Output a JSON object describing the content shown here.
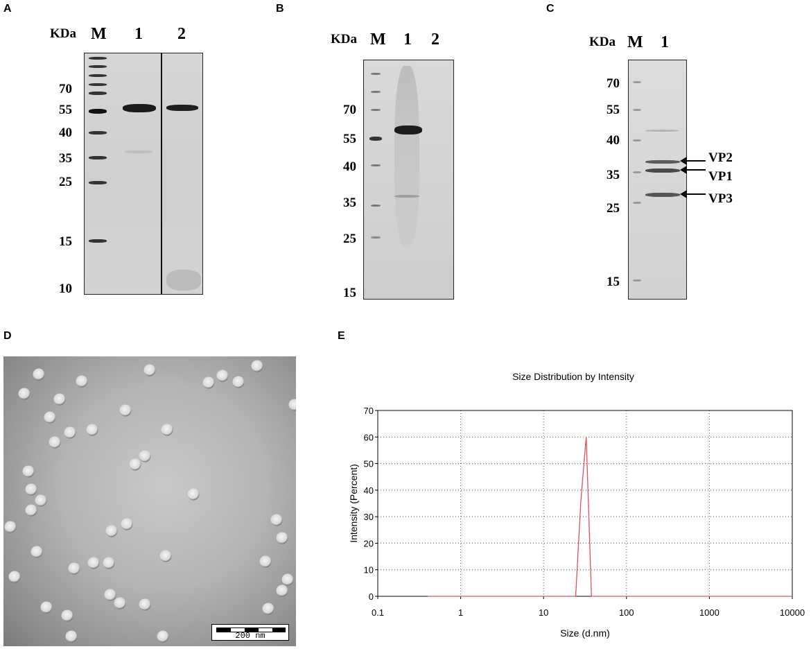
{
  "panels": {
    "A": {
      "label": "A",
      "unit": "KDa",
      "lanes": [
        "M",
        "1",
        "2"
      ],
      "markers": [
        "70",
        "55",
        "40",
        "35",
        "25",
        "15",
        "10"
      ]
    },
    "B": {
      "label": "B",
      "unit": "KDa",
      "lanes": [
        "M",
        "1",
        "2"
      ],
      "markers": [
        "70",
        "55",
        "40",
        "35",
        "25",
        "15"
      ]
    },
    "C": {
      "label": "C",
      "unit": "KDa",
      "lanes": [
        "M",
        "1"
      ],
      "markers": [
        "70",
        "55",
        "40",
        "35",
        "25",
        "15"
      ],
      "bands": [
        "VP2",
        "VP1",
        "VP3"
      ]
    },
    "D": {
      "label": "D",
      "scale_bar": "200 nm"
    },
    "E": {
      "label": "E"
    }
  },
  "chart_data": {
    "type": "line",
    "title": "Size Distribution by Intensity",
    "xlabel": "Size (d.nm)",
    "ylabel": "Intensity (Percent)",
    "xscale": "log",
    "xlim": [
      0.1,
      10000
    ],
    "ylim": [
      0,
      70
    ],
    "xticks": [
      "0.1",
      "1",
      "10",
      "100",
      "1000",
      "10000"
    ],
    "yticks": [
      "0",
      "10",
      "20",
      "30",
      "40",
      "50",
      "60",
      "70"
    ],
    "grid": true,
    "line_color": "#e0505a",
    "series": [
      {
        "x": [
          0.4,
          24.4,
          28.2,
          32.7,
          37.8,
          10000
        ],
        "y": [
          0,
          0,
          36,
          60,
          0,
          0
        ]
      }
    ]
  }
}
